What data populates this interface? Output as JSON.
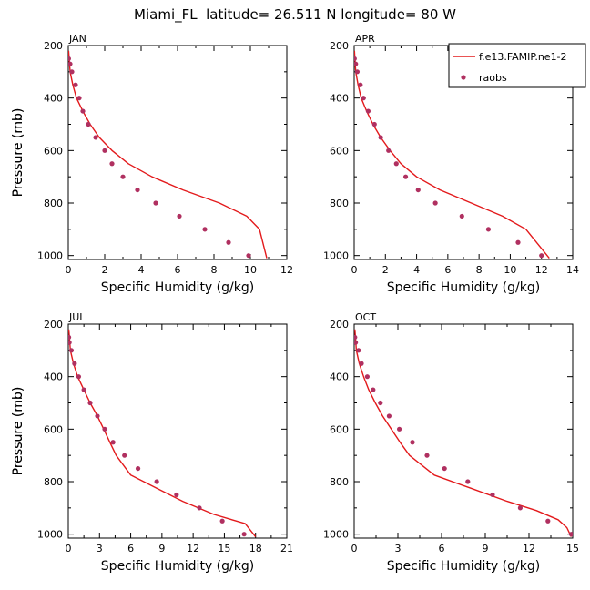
{
  "title": "Miami_FL  latitude= 26.511 N longitude= 80 W",
  "colors": {
    "model": "#e31a1c",
    "obs": "#b03060",
    "axis": "#000000"
  },
  "legend": {
    "model_label": "f.e13.FAMIP.ne1-2",
    "obs_label": "raobs"
  },
  "chart_data": [
    {
      "type": "line",
      "month": "JAN",
      "xlabel": "Specific Humidity (g/kg)",
      "ylabel": "Pressure (mb)",
      "xlim": [
        0,
        12
      ],
      "xticks": [
        0,
        2,
        4,
        6,
        8,
        10,
        12
      ],
      "ylim": [
        1000,
        200
      ],
      "yticks": [
        200,
        400,
        600,
        800,
        1000
      ],
      "model": {
        "name": "f.e13.FAMIP.ne1-2",
        "x": [
          0.02,
          0.1,
          0.25,
          0.45,
          0.8,
          1.2,
          1.7,
          2.4,
          3.3,
          4.6,
          6.3,
          8.3,
          9.8,
          10.5,
          10.9
        ],
        "p": [
          220,
          300,
          350,
          400,
          450,
          500,
          550,
          600,
          650,
          700,
          750,
          800,
          850,
          900,
          1010
        ]
      },
      "obs": {
        "name": "raobs",
        "x": [
          0.02,
          0.1,
          0.2,
          0.4,
          0.6,
          0.8,
          1.1,
          1.5,
          2.0,
          2.4,
          3.0,
          3.8,
          4.8,
          6.1,
          7.5,
          8.8,
          9.9
        ],
        "p": [
          250,
          270,
          300,
          350,
          400,
          450,
          500,
          550,
          600,
          650,
          700,
          750,
          800,
          850,
          900,
          950,
          1000
        ]
      }
    },
    {
      "type": "line",
      "month": "APR",
      "xlabel": "Specific Humidity (g/kg)",
      "ylabel": "Pressure (mb)",
      "xlim": [
        0,
        14
      ],
      "xticks": [
        0,
        2,
        4,
        6,
        8,
        10,
        12,
        14
      ],
      "ylim": [
        1000,
        200
      ],
      "yticks": [
        200,
        400,
        600,
        800,
        1000
      ],
      "model": {
        "name": "f.e13.FAMIP.ne1-2",
        "x": [
          0.02,
          0.1,
          0.25,
          0.45,
          0.8,
          1.2,
          1.7,
          2.3,
          3.0,
          4.0,
          5.5,
          7.5,
          9.5,
          11.0,
          12.5
        ],
        "p": [
          220,
          300,
          350,
          400,
          450,
          500,
          550,
          600,
          650,
          700,
          750,
          800,
          850,
          900,
          1010
        ]
      },
      "obs": {
        "name": "raobs",
        "x": [
          0.02,
          0.1,
          0.2,
          0.4,
          0.6,
          0.9,
          1.3,
          1.7,
          2.2,
          2.7,
          3.3,
          4.1,
          5.2,
          6.9,
          8.6,
          10.5,
          12.0
        ],
        "p": [
          250,
          270,
          300,
          350,
          400,
          450,
          500,
          550,
          600,
          650,
          700,
          750,
          800,
          850,
          900,
          950,
          1000
        ]
      }
    },
    {
      "type": "line",
      "month": "JUL",
      "xlabel": "Specific Humidity (g/kg)",
      "ylabel": "Pressure (mb)",
      "xlim": [
        0,
        21
      ],
      "xticks": [
        0,
        3,
        6,
        9,
        12,
        15,
        18,
        21
      ],
      "ylim": [
        1000,
        200
      ],
      "yticks": [
        200,
        400,
        600,
        800,
        1000
      ],
      "model": {
        "name": "f.e13.FAMIP.ne1-2",
        "x": [
          0.05,
          0.2,
          0.5,
          0.9,
          1.5,
          2.1,
          2.8,
          3.4,
          4.0,
          4.6,
          6.0,
          8.5,
          11.0,
          14.0,
          17.0,
          18.0
        ],
        "p": [
          220,
          300,
          350,
          400,
          450,
          500,
          550,
          600,
          650,
          700,
          775,
          825,
          875,
          925,
          960,
          1010
        ]
      },
      "obs": {
        "name": "raobs",
        "x": [
          0.05,
          0.1,
          0.3,
          0.6,
          1.0,
          1.5,
          2.1,
          2.8,
          3.5,
          4.3,
          5.4,
          6.7,
          8.5,
          10.4,
          12.6,
          14.8,
          16.9
        ],
        "p": [
          250,
          270,
          300,
          350,
          400,
          450,
          500,
          550,
          600,
          650,
          700,
          750,
          800,
          850,
          900,
          950,
          1000
        ]
      }
    },
    {
      "type": "line",
      "month": "OCT",
      "xlabel": "Specific Humidity (g/kg)",
      "ylabel": "Pressure (mb)",
      "xlim": [
        0,
        15
      ],
      "xticks": [
        0,
        3,
        6,
        9,
        12,
        15
      ],
      "ylim": [
        1000,
        200
      ],
      "yticks": [
        200,
        400,
        600,
        800,
        1000
      ],
      "model": {
        "name": "f.e13.FAMIP.ne1-2",
        "x": [
          0.05,
          0.15,
          0.35,
          0.65,
          1.0,
          1.45,
          1.95,
          2.55,
          3.15,
          3.8,
          5.5,
          8.0,
          10.5,
          12.5,
          14.0,
          14.6,
          14.9
        ],
        "p": [
          220,
          300,
          350,
          400,
          450,
          500,
          550,
          600,
          650,
          700,
          775,
          825,
          875,
          910,
          945,
          975,
          1010
        ]
      },
      "obs": {
        "name": "raobs",
        "x": [
          0.05,
          0.1,
          0.3,
          0.5,
          0.9,
          1.3,
          1.8,
          2.4,
          3.1,
          4.0,
          5.0,
          6.2,
          7.8,
          9.5,
          11.4,
          13.3,
          14.9
        ],
        "p": [
          250,
          270,
          300,
          350,
          400,
          450,
          500,
          550,
          600,
          650,
          700,
          750,
          800,
          850,
          900,
          950,
          1000
        ]
      }
    }
  ]
}
